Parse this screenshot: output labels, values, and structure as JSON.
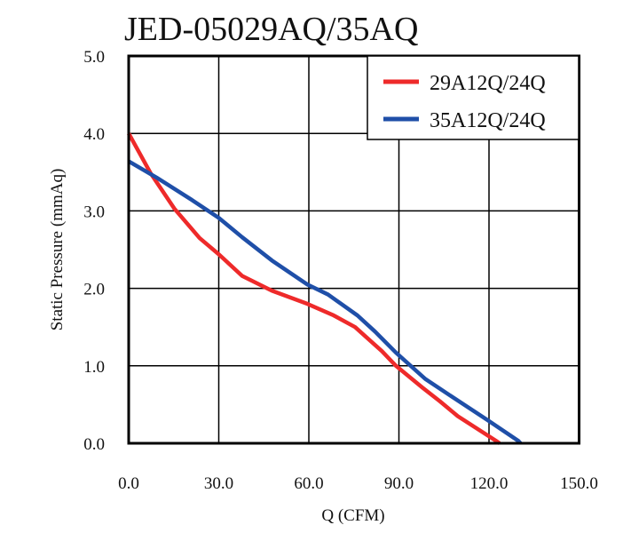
{
  "chart_data": {
    "type": "line",
    "title": "JED-05029AQ/35AQ",
    "xlabel": "Q (CFM)",
    "ylabel": "Static Pressure (mmAq)",
    "xlim": [
      0,
      150
    ],
    "ylim": [
      0,
      5
    ],
    "grid": true,
    "legend_position": "top-right",
    "x_ticks": [
      "0.0",
      "30.0",
      "60.0",
      "90.0",
      "120.0",
      "150.0"
    ],
    "y_ticks": [
      "0.0",
      "1.0",
      "2.0",
      "3.0",
      "4.0",
      "5.0"
    ],
    "series": [
      {
        "name": "29A12Q/24Q",
        "color": "#ee2a2a",
        "points": [
          [
            0,
            4.0
          ],
          [
            7.4,
            3.48
          ],
          [
            15.2,
            3.03
          ],
          [
            23.6,
            2.65
          ],
          [
            30,
            2.44
          ],
          [
            37.8,
            2.16
          ],
          [
            47.7,
            1.97
          ],
          [
            59.5,
            1.8
          ],
          [
            68.3,
            1.65
          ],
          [
            75.4,
            1.5
          ],
          [
            84.3,
            1.19
          ],
          [
            89,
            1.0
          ],
          [
            97.8,
            0.72
          ],
          [
            103.7,
            0.54
          ],
          [
            109.6,
            0.35
          ],
          [
            122.4,
            0.03
          ],
          [
            123.5,
            0
          ]
        ]
      },
      {
        "name": "35A12Q/24Q",
        "color": "#1f4fa8",
        "points": [
          [
            0,
            3.64
          ],
          [
            9.3,
            3.43
          ],
          [
            21.1,
            3.14
          ],
          [
            30,
            2.91
          ],
          [
            37.8,
            2.66
          ],
          [
            47.7,
            2.36
          ],
          [
            59.5,
            2.05
          ],
          [
            66.4,
            1.92
          ],
          [
            76.2,
            1.65
          ],
          [
            82.1,
            1.44
          ],
          [
            89,
            1.17
          ],
          [
            98.8,
            0.83
          ],
          [
            107.7,
            0.6
          ],
          [
            119.5,
            0.3
          ],
          [
            129.8,
            0.03
          ],
          [
            130.5,
            0
          ]
        ]
      }
    ]
  }
}
